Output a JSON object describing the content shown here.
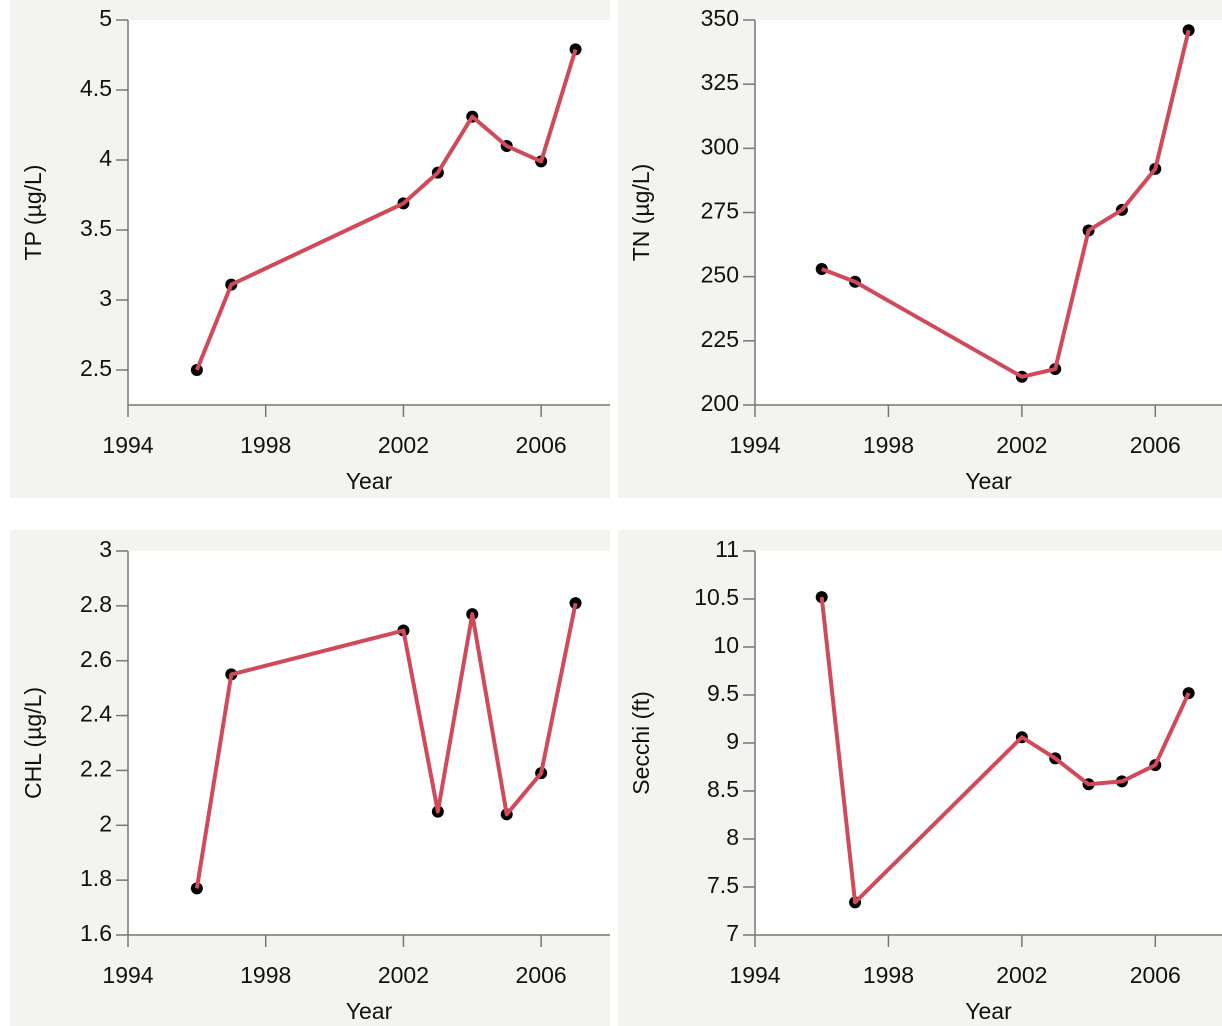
{
  "chart_data": [
    {
      "type": "line",
      "ylabel": "TP (µg/L)",
      "xlabel": "Year",
      "x": [
        1996,
        1997,
        2002,
        2003,
        2004,
        2005,
        2006,
        2007
      ],
      "values": [
        2.5,
        3.11,
        3.69,
        3.91,
        4.31,
        4.1,
        3.99,
        4.79
      ],
      "color": "#d04a5a",
      "marker_color": "#000000",
      "xlim": [
        1994,
        2008
      ],
      "xticks": [
        1994,
        1998,
        2002,
        2006
      ],
      "ylim": [
        2.25,
        5
      ],
      "yticks": [
        2.5,
        3,
        3.5,
        4,
        4.5,
        5
      ]
    },
    {
      "type": "line",
      "ylabel": "TN (µg/L)",
      "xlabel": "Year",
      "x": [
        1996,
        1997,
        2002,
        2003,
        2004,
        2005,
        2006,
        2007
      ],
      "values": [
        253,
        248,
        211,
        214,
        268,
        276,
        292,
        346
      ],
      "color": "#d04a5a",
      "marker_color": "#000000",
      "xlim": [
        1994,
        2008
      ],
      "xticks": [
        1994,
        1998,
        2002,
        2006
      ],
      "ylim": [
        200,
        350
      ],
      "yticks": [
        200,
        225,
        250,
        275,
        300,
        325,
        350
      ]
    },
    {
      "type": "line",
      "ylabel": "CHL (µg/L)",
      "xlabel": "Year",
      "x": [
        1996,
        1997,
        2002,
        2003,
        2004,
        2005,
        2006,
        2007
      ],
      "values": [
        1.77,
        2.55,
        2.71,
        2.05,
        2.77,
        2.04,
        2.19,
        2.81
      ],
      "color": "#d04a5a",
      "marker_color": "#000000",
      "xlim": [
        1994,
        2008
      ],
      "xticks": [
        1994,
        1998,
        2002,
        2006
      ],
      "ylim": [
        1.6,
        3
      ],
      "yticks": [
        1.6,
        1.8,
        2,
        2.2,
        2.4,
        2.6,
        2.8,
        3
      ]
    },
    {
      "type": "line",
      "ylabel": "Secchi (ft)",
      "xlabel": "Year",
      "x": [
        1996,
        1997,
        2002,
        2003,
        2004,
        2005,
        2006,
        2007
      ],
      "values": [
        10.52,
        7.34,
        9.06,
        8.84,
        8.57,
        8.6,
        8.77,
        9.52
      ],
      "color": "#d04a5a",
      "marker_color": "#000000",
      "xlim": [
        1994,
        2008
      ],
      "xticks": [
        1994,
        1998,
        2002,
        2006
      ],
      "ylim": [
        7,
        11
      ],
      "yticks": [
        7,
        7.5,
        8,
        8.5,
        9,
        9.5,
        10,
        10.5,
        11
      ]
    }
  ]
}
